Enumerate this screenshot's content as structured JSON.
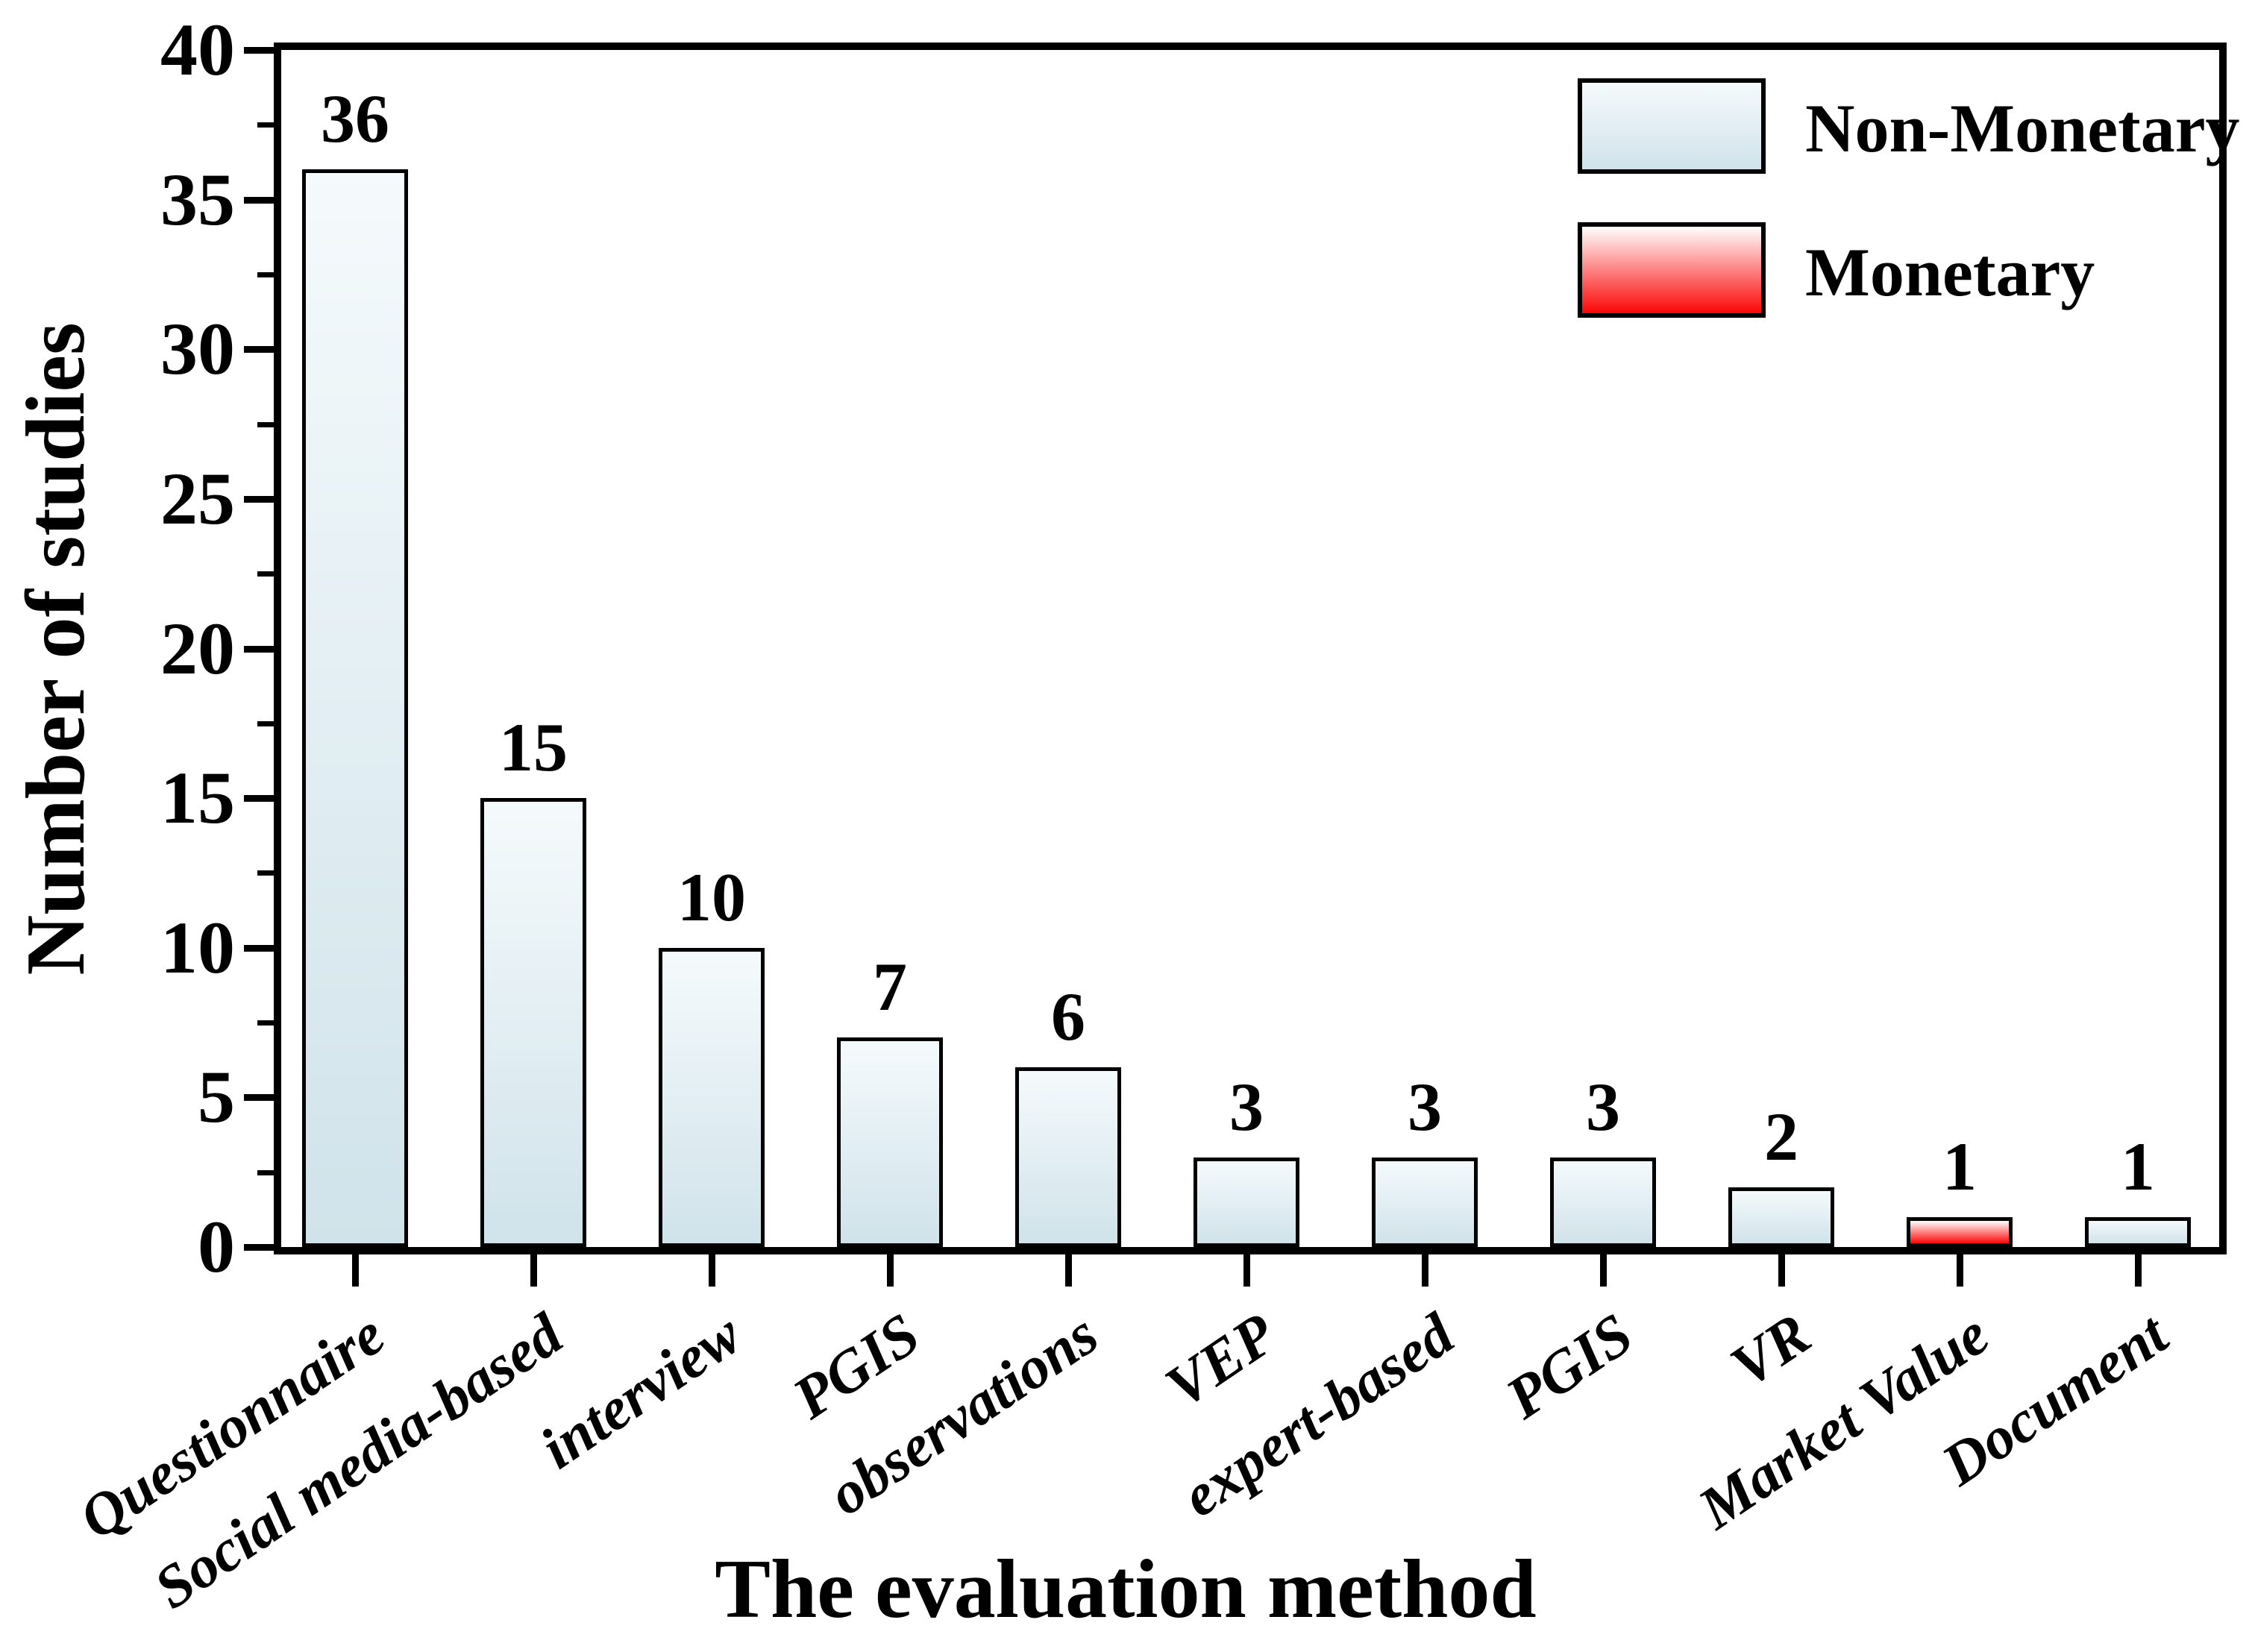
{
  "chart_data": {
    "type": "bar",
    "title": "",
    "xlabel": "The evaluation method",
    "ylabel": "Number of studies",
    "categories": [
      "Questionnaire",
      "Social media-based",
      "interview",
      "PGIS",
      "observations",
      "VEP",
      "expert-based",
      "PGIS",
      "VR",
      "Market Value",
      "Document"
    ],
    "values": [
      36,
      15,
      10,
      7,
      6,
      3,
      3,
      3,
      2,
      1,
      1
    ],
    "value_labels": [
      "36",
      "15",
      "10",
      "7",
      "6",
      "3",
      "3",
      "3",
      "2",
      "1",
      "1"
    ],
    "series_of": [
      "non_monetary",
      "non_monetary",
      "non_monetary",
      "non_monetary",
      "non_monetary",
      "non_monetary",
      "non_monetary",
      "non_monetary",
      "non_monetary",
      "monetary",
      "non_monetary"
    ],
    "ylim": [
      0,
      40
    ],
    "y_major_ticks": [
      0,
      5,
      10,
      15,
      20,
      25,
      30,
      35,
      40
    ],
    "y_major_tick_labels": [
      "0",
      "5",
      "10",
      "15",
      "20",
      "25",
      "30",
      "35",
      "40"
    ],
    "y_minor_ticks": [
      2.5,
      7.5,
      12.5,
      17.5,
      22.5,
      27.5,
      32.5,
      37.5
    ],
    "grid": false,
    "legend": {
      "position": "top-right",
      "entries": [
        {
          "id": "non_monetary",
          "label": "Non-Monetary"
        },
        {
          "id": "monetary",
          "label": "Monetary"
        }
      ]
    },
    "colors": {
      "non_monetary_top": "#f5fafc",
      "non_monetary_bottom": "#d0e3ea",
      "monetary_top": "#ffffff",
      "monetary_bottom": "#fb0606",
      "bar_border": "#000000",
      "frame": "#000000",
      "text": "#000000",
      "background": "#ffffff"
    }
  }
}
